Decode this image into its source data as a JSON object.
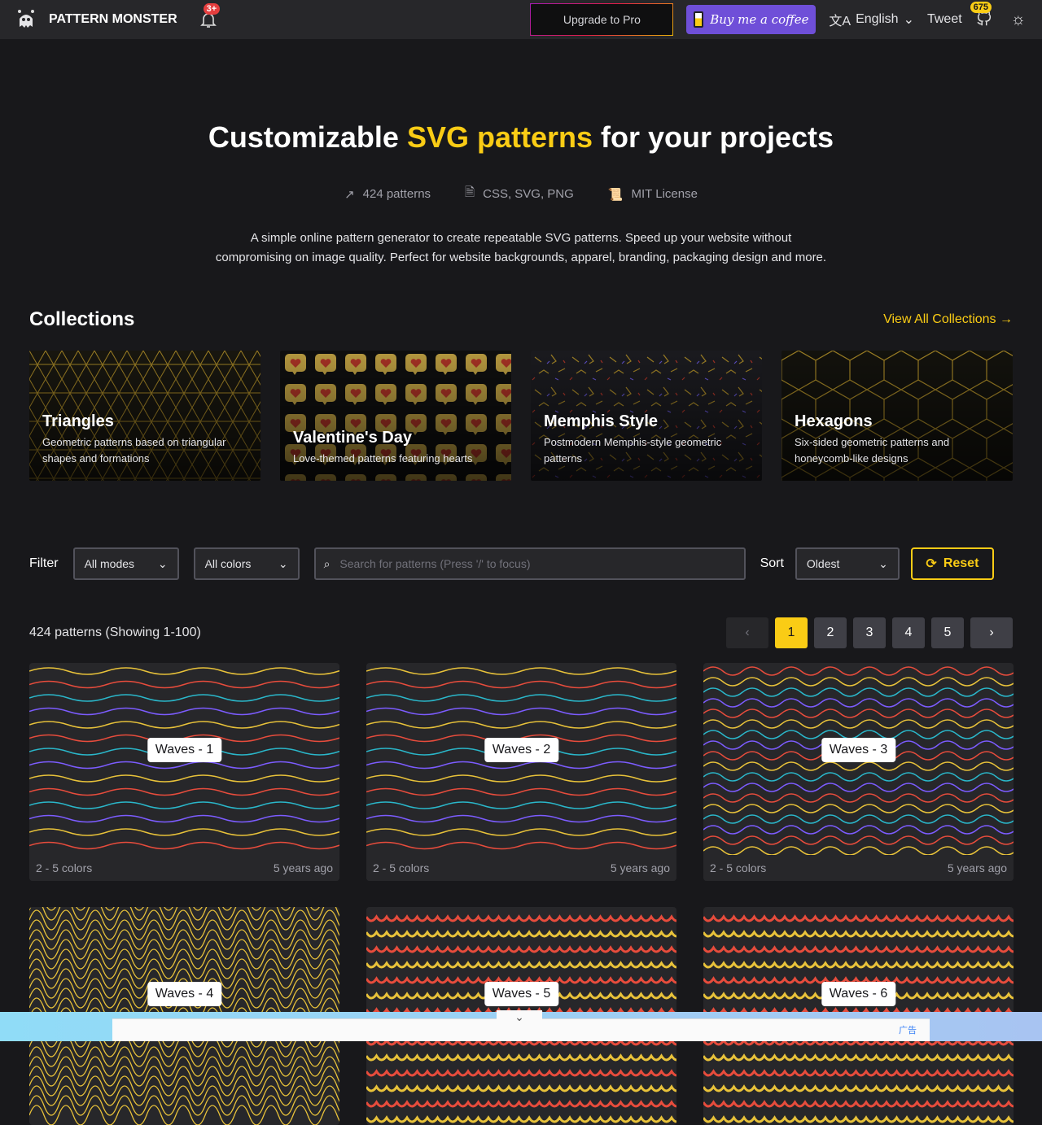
{
  "header": {
    "brand": "PATTERN MONSTER",
    "notif_badge": "3+",
    "upgrade": "Upgrade to Pro",
    "coffee": "Buy me a coffee",
    "language": "English",
    "tweet": "Tweet",
    "github_stars": "675",
    "icons": [
      "monster-logo",
      "bell-icon",
      "translate-icon",
      "github-icon",
      "sun-icon"
    ]
  },
  "hero": {
    "title_a": "Customizable ",
    "title_hl": "SVG patterns",
    "title_b": " for your projects",
    "stats": [
      "424 patterns",
      "CSS, SVG, PNG",
      "MIT License"
    ],
    "desc_1": "A simple online pattern generator to create repeatable SVG patterns. Speed up your website without",
    "desc_2": "compromising on image quality. Perfect for website backgrounds, apparel, branding, packaging design and more."
  },
  "collections": {
    "title": "Collections",
    "view_all": "View All Collections →",
    "items": [
      {
        "title": "Triangles",
        "desc": "Geometric patterns based on triangular shapes and formations"
      },
      {
        "title": "Valentine's Day",
        "desc": "Love-themed patterns featuring hearts"
      },
      {
        "title": "Memphis Style",
        "desc": "Postmodern Memphis-style geometric patterns"
      },
      {
        "title": "Hexagons",
        "desc": "Six-sided geometric patterns and honeycomb-like designs"
      }
    ]
  },
  "filter": {
    "label": "Filter",
    "modes": "All modes",
    "colors": "All colors",
    "search_placeholder": "Search for patterns (Press '/' to focus)",
    "sort_label": "Sort",
    "sort": "Oldest",
    "reset": "Reset"
  },
  "results": {
    "count": "424 patterns (Showing 1-100)",
    "pages": [
      "1",
      "2",
      "3",
      "4",
      "5"
    ],
    "current_page": "1"
  },
  "colors": {
    "accent": "#facc15",
    "yellow": "#e8c23a",
    "red": "#e74c3c",
    "teal": "#2ab7ca",
    "purple": "#7c5cff"
  },
  "patterns": [
    {
      "name": "Waves - 1",
      "colors": "2 - 5 colors",
      "age": "5 years ago"
    },
    {
      "name": "Waves - 2",
      "colors": "2 - 5 colors",
      "age": "5 years ago"
    },
    {
      "name": "Waves - 3",
      "colors": "2 - 5 colors",
      "age": "5 years ago"
    },
    {
      "name": "Waves - 4"
    },
    {
      "name": "Waves - 5"
    },
    {
      "name": "Waves - 6"
    }
  ],
  "ad": {
    "label": "广告"
  }
}
